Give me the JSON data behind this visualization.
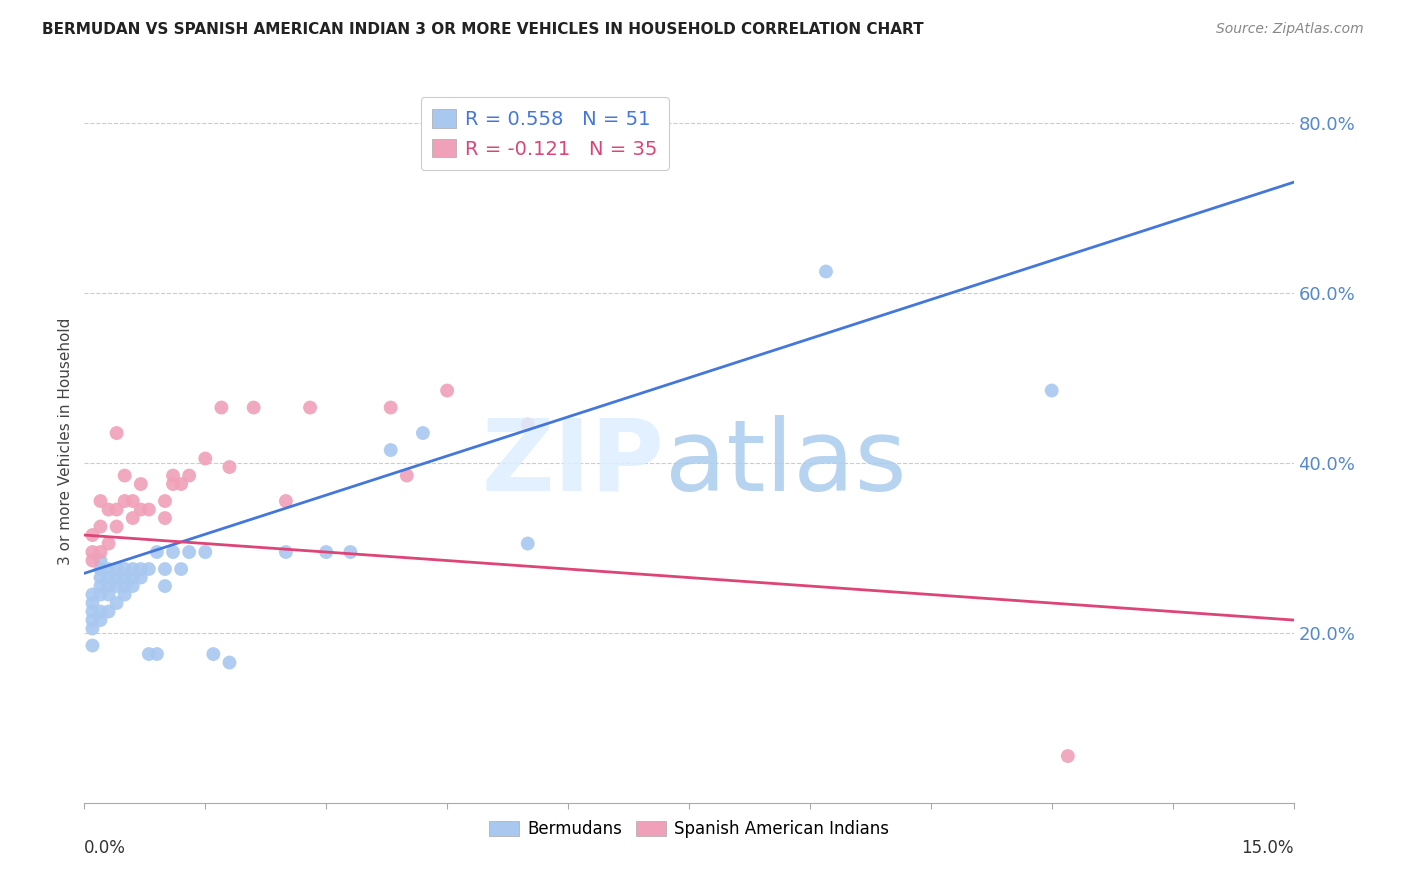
{
  "title": "BERMUDAN VS SPANISH AMERICAN INDIAN 3 OR MORE VEHICLES IN HOUSEHOLD CORRELATION CHART",
  "source": "Source: ZipAtlas.com",
  "ylabel": "3 or more Vehicles in Household",
  "right_yticks": [
    "80.0%",
    "60.0%",
    "40.0%",
    "20.0%"
  ],
  "right_ytick_vals": [
    0.8,
    0.6,
    0.4,
    0.2
  ],
  "xlim": [
    0.0,
    0.15
  ],
  "ylim": [
    0.0,
    0.85
  ],
  "legend_blue_text": "R = 0.558   N = 51",
  "legend_pink_text": "R = -0.121   N = 35",
  "blue_color": "#a8c8f0",
  "pink_color": "#f0a0b8",
  "blue_line_color": "#4477dd",
  "pink_line_color": "#dd4477",
  "blue_line_x": [
    0.0,
    0.15
  ],
  "blue_line_y": [
    0.27,
    0.73
  ],
  "pink_line_x": [
    0.0,
    0.15
  ],
  "pink_line_y": [
    0.315,
    0.215
  ],
  "bermudans_x": [
    0.001,
    0.001,
    0.001,
    0.001,
    0.001,
    0.001,
    0.002,
    0.002,
    0.002,
    0.002,
    0.002,
    0.002,
    0.002,
    0.003,
    0.003,
    0.003,
    0.003,
    0.003,
    0.004,
    0.004,
    0.004,
    0.004,
    0.005,
    0.005,
    0.005,
    0.005,
    0.006,
    0.006,
    0.006,
    0.007,
    0.007,
    0.008,
    0.008,
    0.009,
    0.009,
    0.01,
    0.01,
    0.011,
    0.012,
    0.013,
    0.015,
    0.016,
    0.018,
    0.025,
    0.03,
    0.033,
    0.038,
    0.042,
    0.055,
    0.092,
    0.12
  ],
  "bermudans_y": [
    0.185,
    0.205,
    0.215,
    0.225,
    0.235,
    0.245,
    0.215,
    0.225,
    0.245,
    0.255,
    0.265,
    0.275,
    0.285,
    0.225,
    0.245,
    0.255,
    0.265,
    0.275,
    0.235,
    0.255,
    0.265,
    0.275,
    0.245,
    0.255,
    0.265,
    0.275,
    0.255,
    0.265,
    0.275,
    0.265,
    0.275,
    0.175,
    0.275,
    0.175,
    0.295,
    0.255,
    0.275,
    0.295,
    0.275,
    0.295,
    0.295,
    0.175,
    0.165,
    0.295,
    0.295,
    0.295,
    0.415,
    0.435,
    0.305,
    0.625,
    0.485
  ],
  "spanish_x": [
    0.001,
    0.001,
    0.001,
    0.002,
    0.002,
    0.002,
    0.003,
    0.003,
    0.004,
    0.004,
    0.004,
    0.005,
    0.005,
    0.006,
    0.006,
    0.007,
    0.007,
    0.008,
    0.01,
    0.01,
    0.011,
    0.011,
    0.012,
    0.013,
    0.015,
    0.017,
    0.018,
    0.021,
    0.025,
    0.028,
    0.038,
    0.04,
    0.045,
    0.055,
    0.122
  ],
  "spanish_y": [
    0.285,
    0.295,
    0.315,
    0.295,
    0.325,
    0.355,
    0.305,
    0.345,
    0.325,
    0.345,
    0.435,
    0.355,
    0.385,
    0.335,
    0.355,
    0.345,
    0.375,
    0.345,
    0.335,
    0.355,
    0.375,
    0.385,
    0.375,
    0.385,
    0.405,
    0.465,
    0.395,
    0.465,
    0.355,
    0.465,
    0.465,
    0.385,
    0.485,
    0.445,
    0.055
  ]
}
